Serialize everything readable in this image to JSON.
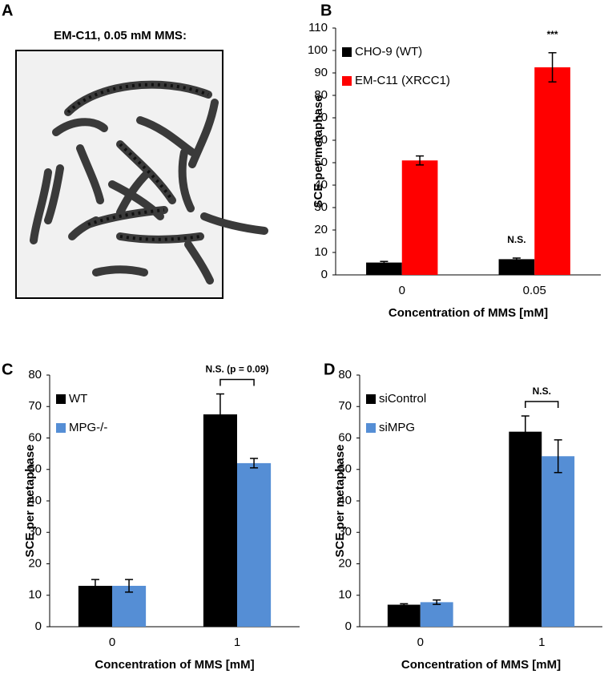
{
  "panel_a": {
    "panel_label": "A",
    "title": "EM-C11, 0.05 mM MMS:"
  },
  "chart_data": [
    {
      "type": "bar",
      "panel_label": "B",
      "ylabel": "SCE per metaphase",
      "xlabel": "Concentration of MMS [mM]",
      "categories": [
        "0",
        "0.05"
      ],
      "series": [
        {
          "name": "CHO-9 (WT)",
          "color": "#000000",
          "values": [
            5.5,
            7
          ],
          "errors": [
            0.5,
            0.5
          ]
        },
        {
          "name": "EM-C11 (XRCC1)",
          "color": "#ff0000",
          "values": [
            51,
            92.5
          ],
          "errors": [
            2,
            6.5
          ]
        }
      ],
      "ylim": [
        0,
        110
      ],
      "yticks": [
        0,
        10,
        20,
        30,
        40,
        50,
        60,
        70,
        80,
        90,
        100,
        110
      ],
      "legend": "upper left",
      "annotations": [
        {
          "text": "N.S.",
          "category": 1,
          "series": 0
        },
        {
          "text": "***",
          "category": 1,
          "series": 1
        }
      ]
    },
    {
      "type": "bar",
      "panel_label": "C",
      "ylabel": "SCE per metaphase",
      "xlabel": "Concentration of MMS [mM]",
      "categories": [
        "0",
        "1"
      ],
      "series": [
        {
          "name": "WT",
          "color": "#000000",
          "values": [
            13,
            67.5
          ],
          "errors": [
            2,
            6.5
          ]
        },
        {
          "name": "MPG-/-",
          "color": "#558ed5",
          "values": [
            13,
            52
          ],
          "errors": [
            2,
            1.5
          ]
        }
      ],
      "ylim": [
        0,
        80
      ],
      "yticks": [
        0,
        10,
        20,
        30,
        40,
        50,
        60,
        70,
        80
      ],
      "legend": "upper left",
      "annotations": [
        {
          "text": "N.S. (p = 0.09)",
          "category": 1,
          "bracket": true
        }
      ]
    },
    {
      "type": "bar",
      "panel_label": "D",
      "ylabel": "SCE per metaphase",
      "xlabel": "Concentration of MMS [mM]",
      "categories": [
        "0",
        "1"
      ],
      "series": [
        {
          "name": "siControl",
          "color": "#000000",
          "values": [
            7,
            62
          ],
          "errors": [
            0.3,
            5
          ]
        },
        {
          "name": "siMPG",
          "color": "#558ed5",
          "values": [
            7.8,
            54.2
          ],
          "errors": [
            0.7,
            5.2
          ]
        }
      ],
      "ylim": [
        0,
        80
      ],
      "yticks": [
        0,
        10,
        20,
        30,
        40,
        50,
        60,
        70,
        80
      ],
      "legend": "upper left",
      "annotations": [
        {
          "text": "N.S.",
          "category": 1,
          "bracket": true
        }
      ]
    }
  ]
}
